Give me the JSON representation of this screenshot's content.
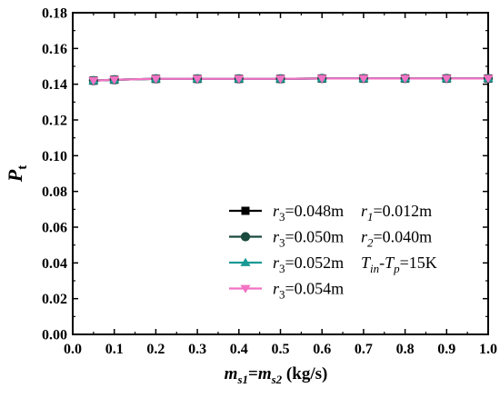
{
  "chart_data": {
    "type": "line",
    "title": "",
    "xlabel": {
      "base1": "m",
      "sub1": "s1",
      "eq": "=",
      "base2": "m",
      "sub2": "s2",
      "unit": " (kg/s)"
    },
    "ylabel": {
      "base": "P",
      "sub": "t"
    },
    "xlim": [
      0.0,
      1.0
    ],
    "ylim": [
      0.0,
      0.18
    ],
    "x_ticks": [
      "0.0",
      "0.1",
      "0.2",
      "0.3",
      "0.4",
      "0.5",
      "0.6",
      "0.7",
      "0.8",
      "0.9",
      "1.0"
    ],
    "y_ticks": [
      "0.00",
      "0.02",
      "0.04",
      "0.06",
      "0.08",
      "0.10",
      "0.12",
      "0.14",
      "0.16",
      "0.18"
    ],
    "grid": false,
    "legend_position": "lower-right",
    "x": [
      0.05,
      0.1,
      0.2,
      0.3,
      0.4,
      0.5,
      0.6,
      0.7,
      0.8,
      0.9,
      1.0
    ],
    "series": [
      {
        "name": "r3=0.048m",
        "color": "#000000",
        "marker": "square",
        "values": [
          0.142,
          0.1425,
          0.143,
          0.143,
          0.143,
          0.143,
          0.1432,
          0.1432,
          0.1432,
          0.1432,
          0.1432
        ]
      },
      {
        "name": "r3=0.050m",
        "color": "#1b4a3e",
        "marker": "circle",
        "values": [
          0.142,
          0.1425,
          0.143,
          0.143,
          0.143,
          0.143,
          0.1432,
          0.1432,
          0.1432,
          0.1432,
          0.1432
        ]
      },
      {
        "name": "r3=0.052m",
        "color": "#1a9a95",
        "marker": "triangle-up",
        "values": [
          0.142,
          0.1425,
          0.143,
          0.143,
          0.143,
          0.143,
          0.1432,
          0.1432,
          0.1432,
          0.1432,
          0.1432
        ]
      },
      {
        "name": "r3=0.054m",
        "color": "#f272c4",
        "marker": "triangle-down",
        "values": [
          0.142,
          0.1425,
          0.143,
          0.143,
          0.143,
          0.143,
          0.1432,
          0.1432,
          0.1432,
          0.1432,
          0.1432
        ]
      }
    ],
    "legend": [
      {
        "r3": "0.048m",
        "note": {
          "pre": "r",
          "sub": "1",
          "post": "=0.012m"
        }
      },
      {
        "r3": "0.050m",
        "note": {
          "pre": "r",
          "sub": "2",
          "post": "=0.040m"
        }
      },
      {
        "r3": "0.052m",
        "note": {
          "pre": "T",
          "sub": "in",
          "mid": "-T",
          "sub2": "p",
          "post": "=15K"
        }
      },
      {
        "r3": "0.054m",
        "note": null
      }
    ]
  }
}
